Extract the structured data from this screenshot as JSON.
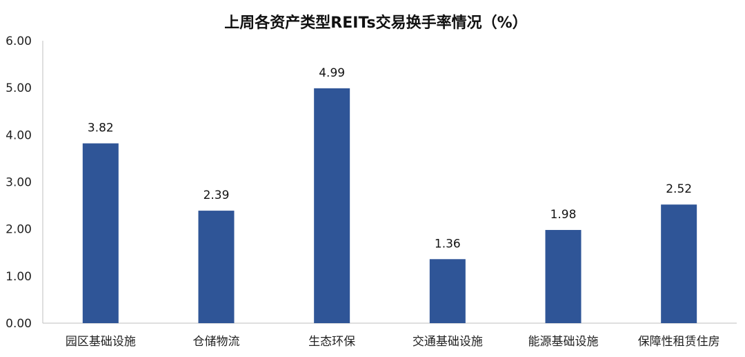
{
  "chart_data": {
    "type": "bar",
    "title": "上周各资产类型REITs交易换手率情况（%）",
    "xlabel": "",
    "ylabel": "",
    "categories": [
      "园区基础设施",
      "仓储物流",
      "生态环保",
      "交通基础设施",
      "能源基础设施",
      "保障性租赁住房"
    ],
    "values": [
      3.82,
      2.39,
      4.99,
      1.36,
      1.98,
      2.52
    ],
    "data_labels": [
      "3.82",
      "2.39",
      "4.99",
      "1.36",
      "1.98",
      "2.52"
    ],
    "ylim": [
      0,
      6
    ],
    "yticks": [
      "0.00",
      "1.00",
      "2.00",
      "3.00",
      "4.00",
      "5.00",
      "6.00"
    ],
    "grid": false,
    "legend": "none",
    "bar_color": "#2F5597"
  }
}
